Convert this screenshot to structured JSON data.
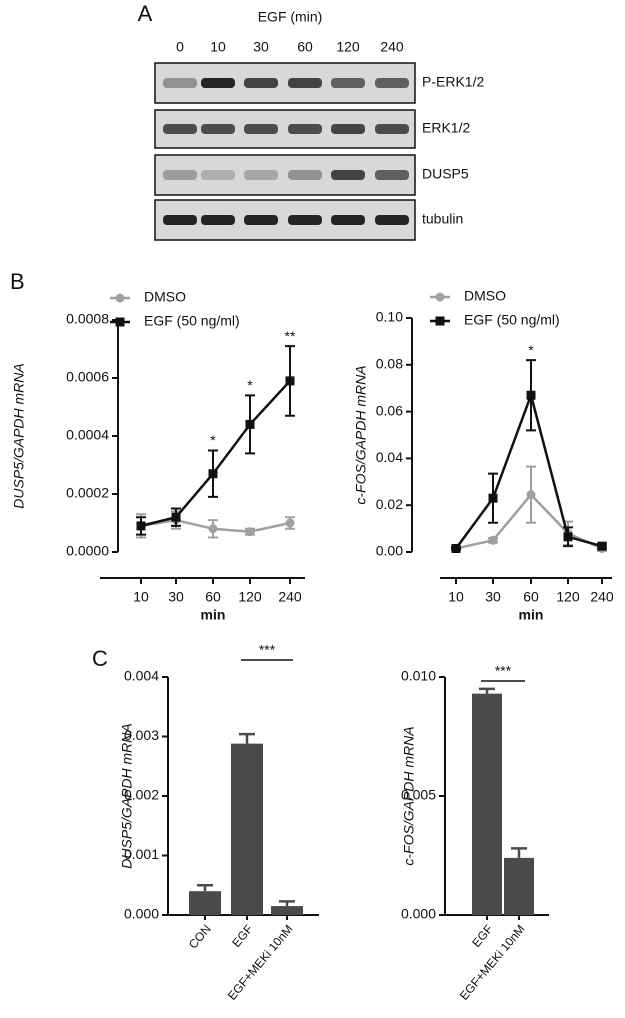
{
  "blot": {
    "panel": "A",
    "treatment": "EGF (min)",
    "lanes": [
      "0",
      "10",
      "30",
      "60",
      "120",
      "240"
    ],
    "rows": [
      "P-ERK1/2",
      "ERK1/2",
      "DUSP5",
      "tubulin"
    ]
  },
  "chart_data": [
    {
      "type": "line",
      "panel": "B",
      "ylabel": "DUSP5/GAPDH mRNA",
      "xlabel": "min",
      "categories": [
        "10",
        "30",
        "60",
        "120",
        "240"
      ],
      "ylim": [
        0,
        0.0008
      ],
      "yticks": [
        {
          "value": 0,
          "label": "0.0000"
        },
        {
          "value": 0.0002,
          "label": "0.0002"
        },
        {
          "value": 0.0004,
          "label": "0.0004"
        },
        {
          "value": 0.0006,
          "label": "0.0006"
        },
        {
          "value": 0.0008,
          "label": "0.0008"
        }
      ],
      "legend": "top-left",
      "series": [
        {
          "name": "DMSO",
          "color": "#a0a0a0",
          "values": [
            9e-05,
            0.00011,
            8e-05,
            7e-05,
            0.0001
          ],
          "errors": [
            4e-05,
            3e-05,
            3e-05,
            1e-05,
            2e-05
          ]
        },
        {
          "name": "EGF (50 ng/ml)",
          "color": "#111111",
          "values": [
            9e-05,
            0.00012,
            0.00027,
            0.00044,
            0.00059
          ],
          "errors": [
            3e-05,
            3e-05,
            8e-05,
            0.0001,
            0.00012
          ]
        }
      ],
      "significance": [
        null,
        null,
        "*",
        "*",
        "**"
      ]
    },
    {
      "type": "line",
      "ylabel": "c-FOS/GAPDH mRNA",
      "xlabel": "min",
      "categories": [
        "10",
        "30",
        "60",
        "120",
        "240"
      ],
      "ylim": [
        0,
        0.1
      ],
      "yticks": [
        {
          "value": 0,
          "label": "0.00"
        },
        {
          "value": 0.02,
          "label": "0.02"
        },
        {
          "value": 0.04,
          "label": "0.04"
        },
        {
          "value": 0.06,
          "label": "0.06"
        },
        {
          "value": 0.08,
          "label": "0.08"
        },
        {
          "value": 0.1,
          "label": "0.10"
        }
      ],
      "legend": "top-left",
      "series": [
        {
          "name": "DMSO",
          "color": "#a0a0a0",
          "values": [
            0.0015,
            0.005,
            0.0245,
            0.008,
            0.0015
          ],
          "errors": [
            0.0005,
            0.001,
            0.012,
            0.005,
            0.001
          ]
        },
        {
          "name": "EGF (50 ng/ml)",
          "color": "#111111",
          "values": [
            0.0015,
            0.023,
            0.067,
            0.0065,
            0.0025
          ],
          "errors": [
            0.0005,
            0.0105,
            0.015,
            0.004,
            0.001
          ]
        }
      ],
      "significance": [
        null,
        null,
        "*",
        null,
        null
      ]
    },
    {
      "type": "bar",
      "panel": "C",
      "ylabel": "DUSP5/GAPDH mRNA",
      "categories": [
        "CON",
        "EGF",
        "EGF+MEKi 10nM"
      ],
      "values": [
        0.0004,
        0.00288,
        0.00015
      ],
      "errors": [
        0.0001,
        0.00016,
        8e-05
      ],
      "color": "#4a4a4a",
      "ylim": [
        0,
        0.004
      ],
      "yticks": [
        {
          "value": 0,
          "label": "0.000"
        },
        {
          "value": 0.001,
          "label": "0.001"
        },
        {
          "value": 0.002,
          "label": "0.002"
        },
        {
          "value": 0.003,
          "label": "0.003"
        },
        {
          "value": 0.004,
          "label": "0.004"
        }
      ],
      "bracket": {
        "text": "***",
        "from": "EGF",
        "to": "EGF+MEKi 10nM"
      }
    },
    {
      "type": "bar",
      "ylabel": "c-FOS/GAPDH mRNA",
      "categories": [
        "EGF",
        "EGF+MEKi 10nM"
      ],
      "values": [
        0.0093,
        0.0024
      ],
      "errors": [
        0.0002,
        0.0004
      ],
      "color": "#4a4a4a",
      "ylim": [
        0,
        0.01
      ],
      "yticks": [
        {
          "value": 0,
          "label": "0.000"
        },
        {
          "value": 0.005,
          "label": "0.005"
        },
        {
          "value": 0.01,
          "label": "0.010"
        }
      ],
      "bracket": {
        "text": "***",
        "from": "EGF",
        "to": "EGF+MEKi 10nM"
      }
    }
  ]
}
